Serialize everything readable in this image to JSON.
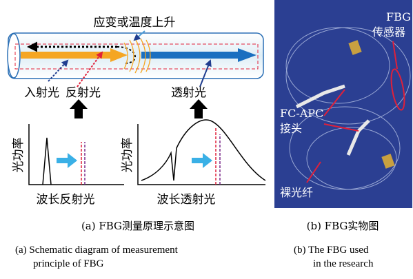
{
  "diagram": {
    "top_label": "应变或温度上升",
    "incident": "入射光",
    "reflected": "反射光",
    "transmitted": "透射光",
    "left_plot": {
      "y_label": "光功率",
      "x_label": "波长反射光"
    },
    "right_plot": {
      "y_label": "光功率",
      "x_label": "波长透射光"
    }
  },
  "photo": {
    "sensor_label": [
      "FBG",
      "传感器"
    ],
    "connector_label": [
      "FC-APC",
      "接头"
    ],
    "fiber_label": "裸光纤"
  },
  "captions": {
    "a_cn": "(a)  FBG测量原理示意图",
    "b_cn": "(b)  FBG实物图",
    "a_en": [
      "(a) Schematic diagram of measurement",
      "principle of FBG"
    ],
    "b_en": [
      "(b)  The FBG used",
      "in the research"
    ]
  }
}
